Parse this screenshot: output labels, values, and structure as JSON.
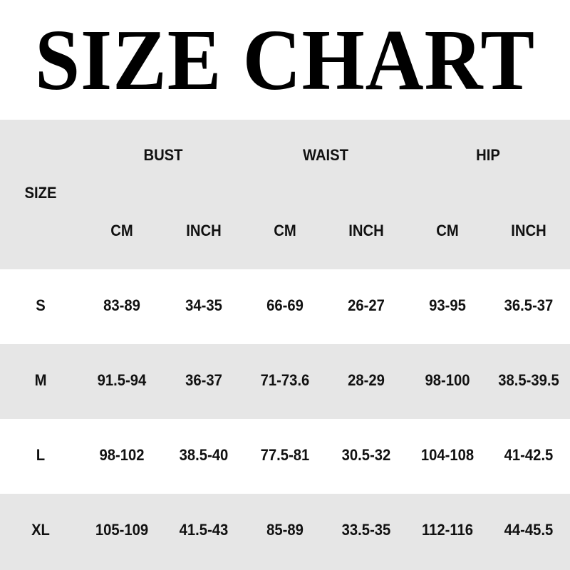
{
  "title": "SIZE CHART",
  "colors": {
    "band": "#e6e6e6",
    "text": "#111111"
  },
  "chart_data": {
    "type": "table",
    "title": "SIZE CHART",
    "size_header": "SIZE",
    "groups": [
      "BUST",
      "WAIST",
      "HIP"
    ],
    "units": [
      "CM",
      "INCH",
      "CM",
      "INCH",
      "CM",
      "INCH"
    ],
    "rows": [
      {
        "size": "S",
        "values": [
          "83-89",
          "34-35",
          "66-69",
          "26-27",
          "93-95",
          "36.5-37"
        ]
      },
      {
        "size": "M",
        "values": [
          "91.5-94",
          "36-37",
          "71-73.6",
          "28-29",
          "98-100",
          "38.5-39.5"
        ]
      },
      {
        "size": "L",
        "values": [
          "98-102",
          "38.5-40",
          "77.5-81",
          "30.5-32",
          "104-108",
          "41-42.5"
        ]
      },
      {
        "size": "XL",
        "values": [
          "105-109",
          "41.5-43",
          "85-89",
          "33.5-35",
          "112-116",
          "44-45.5"
        ]
      }
    ]
  }
}
